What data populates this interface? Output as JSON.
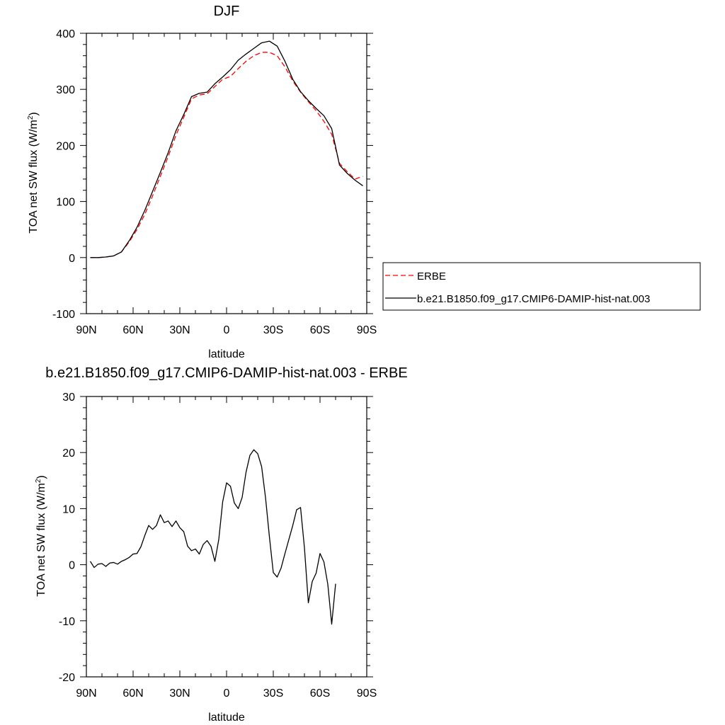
{
  "chart_data": [
    {
      "type": "line",
      "title": "DJF",
      "xlabel": "latitude",
      "ylabel": "TOA net SW flux (W/m",
      "ylabel_sup": "2",
      "ylabel_close": ")",
      "xlim": [
        -90,
        90
      ],
      "ylim": [
        -100,
        400
      ],
      "x_ticks": [
        {
          "value": -90,
          "label": "90N"
        },
        {
          "value": -60,
          "label": "60N"
        },
        {
          "value": -30,
          "label": "30N"
        },
        {
          "value": 0,
          "label": "0"
        },
        {
          "value": 30,
          "label": "30S"
        },
        {
          "value": 60,
          "label": "60S"
        },
        {
          "value": 90,
          "label": "90S"
        }
      ],
      "y_ticks": [
        {
          "value": -100,
          "label": "-100"
        },
        {
          "value": 0,
          "label": "0"
        },
        {
          "value": 100,
          "label": "100"
        },
        {
          "value": 200,
          "label": "200"
        },
        {
          "value": 300,
          "label": "300"
        },
        {
          "value": 400,
          "label": "400"
        }
      ],
      "grid": false,
      "legend_placement": "right",
      "series": [
        {
          "name": "ERBE",
          "color": "#ff0000",
          "dash": "dashed",
          "x": [
            -87.5,
            -82.5,
            -77.5,
            -72.5,
            -67.5,
            -62.5,
            -57.5,
            -52.5,
            -47.5,
            -42.5,
            -37.5,
            -32.5,
            -27.5,
            -22.5,
            -17.5,
            -12.5,
            -7.5,
            -2.5,
            2.5,
            7.5,
            12.5,
            17.5,
            22.5,
            27.5,
            32.5,
            37.5,
            42.5,
            47.5,
            52.5,
            57.5,
            62.5,
            67.5,
            72.5,
            77.5,
            82.5,
            87.5
          ],
          "y": [
            0,
            0,
            1,
            3,
            10,
            28,
            50,
            77,
            110,
            145,
            180,
            218,
            250,
            283,
            290,
            292,
            305,
            318,
            323,
            337,
            350,
            360,
            366,
            366,
            360,
            340,
            315,
            295,
            278,
            262,
            243,
            220,
            168,
            153,
            140,
            145
          ]
        },
        {
          "name": "b.e21.B1850.f09_g17.CMIP6-DAMIP-hist-nat.003",
          "color": "#000000",
          "dash": "solid",
          "x": [
            -87.5,
            -82.5,
            -77.5,
            -72.5,
            -67.5,
            -62.5,
            -57.5,
            -52.5,
            -47.5,
            -42.5,
            -37.5,
            -32.5,
            -27.5,
            -22.5,
            -17.5,
            -12.5,
            -7.5,
            -2.5,
            2.5,
            7.5,
            12.5,
            17.5,
            22.5,
            27.5,
            32.5,
            37.5,
            42.5,
            47.5,
            52.5,
            57.5,
            62.5,
            67.5,
            72.5,
            77.5,
            82.5,
            87.5
          ],
          "y": [
            0,
            0,
            1,
            3,
            10,
            30,
            54,
            84,
            118,
            152,
            187,
            226,
            255,
            287,
            293,
            295,
            310,
            322,
            335,
            352,
            363,
            373,
            383,
            386,
            377,
            350,
            318,
            296,
            280,
            266,
            253,
            230,
            165,
            150,
            138,
            128
          ]
        }
      ]
    },
    {
      "type": "line",
      "title": "b.e21.B1850.f09_g17.CMIP6-DAMIP-hist-nat.003 - ERBE",
      "xlabel": "latitude",
      "ylabel": "TOA net SW flux (W/m",
      "ylabel_sup": "2",
      "ylabel_close": ")",
      "xlim": [
        -90,
        90
      ],
      "ylim": [
        -20,
        30
      ],
      "x_ticks": [
        {
          "value": -90,
          "label": "90N"
        },
        {
          "value": -60,
          "label": "60N"
        },
        {
          "value": -30,
          "label": "30N"
        },
        {
          "value": 0,
          "label": "0"
        },
        {
          "value": 30,
          "label": "30S"
        },
        {
          "value": 60,
          "label": "60S"
        },
        {
          "value": 90,
          "label": "90S"
        }
      ],
      "y_ticks": [
        {
          "value": -20,
          "label": "-20"
        },
        {
          "value": -10,
          "label": "-10"
        },
        {
          "value": 0,
          "label": "0"
        },
        {
          "value": 10,
          "label": "10"
        },
        {
          "value": 20,
          "label": "20"
        },
        {
          "value": 30,
          "label": "30"
        }
      ],
      "grid": false,
      "series": [
        {
          "color": "#000000",
          "dash": "solid",
          "x": [
            -87.5,
            -85,
            -82.5,
            -80,
            -77.5,
            -75,
            -72.5,
            -70,
            -67.5,
            -65,
            -62.5,
            -60,
            -57.5,
            -55,
            -52.5,
            -50,
            -47.5,
            -45,
            -42.5,
            -40,
            -37.5,
            -35,
            -32.5,
            -30,
            -27.5,
            -25,
            -22.5,
            -20,
            -17.5,
            -15,
            -12.5,
            -10,
            -7.5,
            -5,
            -2.5,
            0,
            2.5,
            5,
            7.5,
            10,
            12.5,
            15,
            17.5,
            20,
            22.5,
            25,
            27.5,
            30,
            32.5,
            35,
            37.5,
            40,
            42.5,
            45,
            47.5,
            50,
            52.5,
            55,
            57.5,
            60,
            62.5,
            65,
            67.5,
            70,
            72.5,
            75,
            77.5,
            80,
            82.5,
            85,
            87.5
          ],
          "y": [
            0.6,
            -0.5,
            0.1,
            0.2,
            -0.3,
            0.3,
            0.4,
            0.1,
            0.6,
            0.9,
            1.3,
            1.9,
            2.0,
            3.2,
            5.2,
            7.0,
            6.3,
            7.0,
            8.9,
            7.5,
            7.8,
            6.8,
            7.8,
            6.6,
            5.9,
            3.3,
            2.5,
            2.8,
            1.9,
            3.6,
            4.3,
            3.3,
            0.6,
            4.5,
            11.2,
            14.6,
            14.0,
            11.0,
            10.0,
            12.0,
            16.5,
            19.5,
            20.5,
            19.8,
            17.5,
            12.0,
            5.0,
            -1.4,
            -2.2,
            -0.6,
            2.0,
            4.5,
            7.0,
            9.8,
            10.2,
            3.0,
            -6.8,
            -3.0,
            -1.5,
            2.0,
            0.5,
            -3.5,
            -10.6,
            -3.4,
            null,
            null,
            null,
            null,
            null,
            null,
            null
          ]
        }
      ]
    }
  ],
  "legend": {
    "items": [
      {
        "label": "ERBE",
        "color": "#ff0000",
        "dash": "dashed"
      },
      {
        "label": "b.e21.B1850.f09_g17.CMIP6-DAMIP-hist-nat.003",
        "color": "#000000",
        "dash": "solid"
      }
    ]
  }
}
